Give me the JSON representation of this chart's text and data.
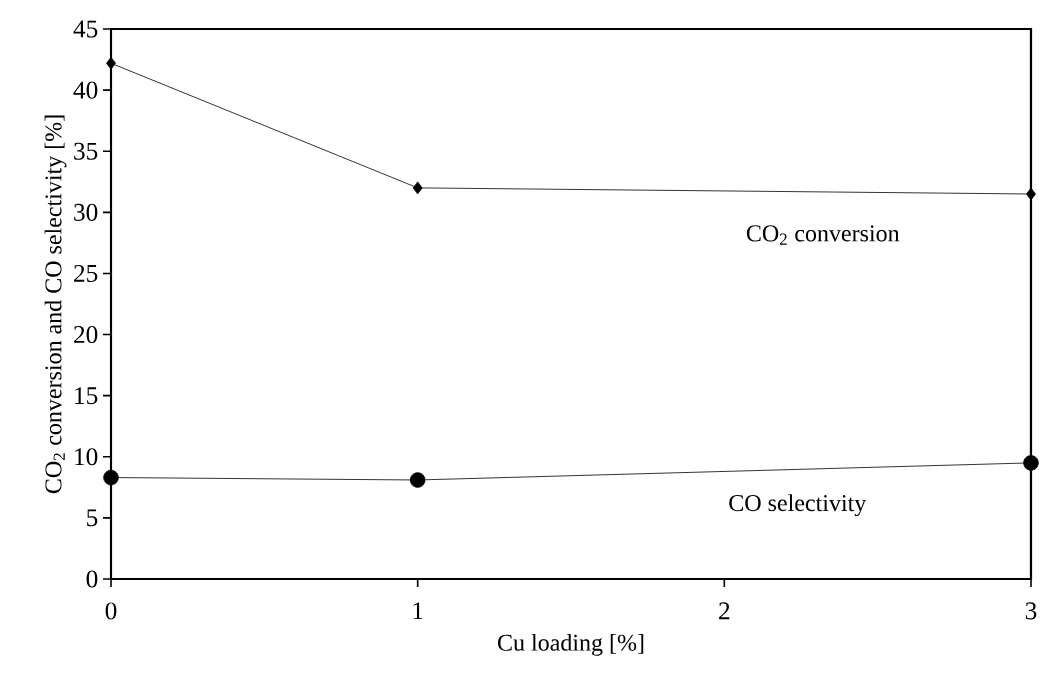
{
  "chart_data": {
    "type": "line",
    "xlabel": "Cu loading [%]",
    "ylabel": "CO$_{2}$ conversion and CO selectivity  [%]",
    "x": [
      0,
      1,
      3
    ],
    "xlim": [
      0,
      3
    ],
    "xticks": [
      0,
      1,
      2,
      3
    ],
    "ylim": [
      0,
      45
    ],
    "yticks": [
      0,
      5,
      10,
      15,
      20,
      25,
      30,
      35,
      40,
      45
    ],
    "grid": false,
    "line_style": "solid",
    "series": [
      {
        "name": "CO$_{2}$ conversion",
        "color": "#000000",
        "marker": "diamond",
        "values": [
          42.2,
          32.0,
          31.5
        ]
      },
      {
        "name": "CO selectivity",
        "color": "#000000",
        "marker": "circle",
        "values": [
          8.3,
          8.1,
          9.5
        ]
      }
    ]
  }
}
